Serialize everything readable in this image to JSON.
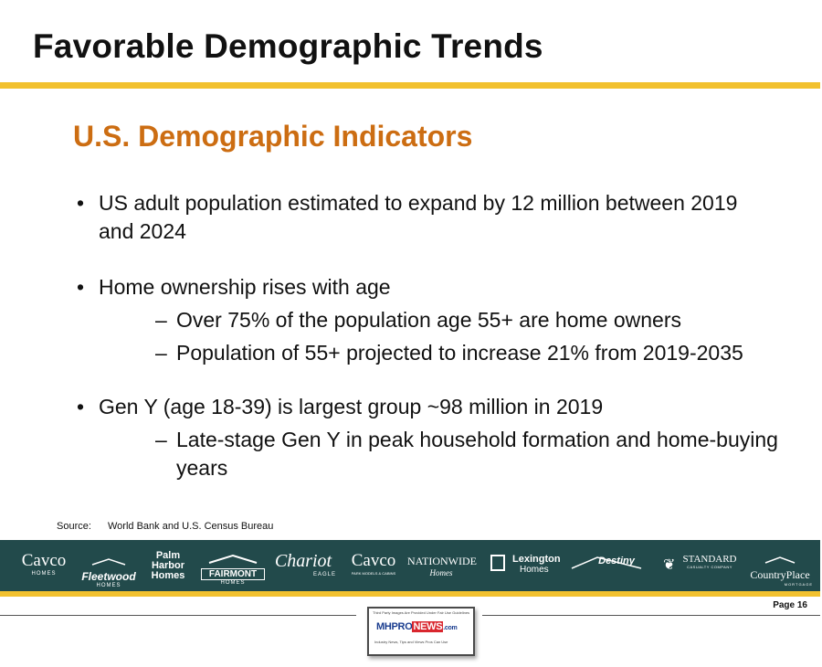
{
  "slide": {
    "title": "Favorable Demographic Trends",
    "subtitle": "U.S. Demographic Indicators",
    "bullets": [
      {
        "marker": "•",
        "text": "US adult population estimated to expand by 12 million between 2019 and 2024",
        "subs": []
      },
      {
        "marker": "•",
        "text": "Home ownership rises with age",
        "subs": [
          {
            "marker": "–",
            "text": "Over 75% of the population age 55+ are home owners"
          },
          {
            "marker": "–",
            "text": "Population of 55+ projected to increase 21% from 2019-2035"
          }
        ]
      },
      {
        "marker": "•",
        "text": "Gen Y (age 18-39) is largest group ~98 million in 2019",
        "subs": [
          {
            "marker": "–",
            "text": "Late-stage Gen Y in peak household formation and home-buying years"
          }
        ]
      }
    ],
    "source_label": "Source:",
    "source_text": "World Bank and U.S. Census Bureau",
    "page_label": "Page 16"
  },
  "brands": [
    {
      "main": "Cavco",
      "small": "HOMES"
    },
    {
      "main": "Fleetwood",
      "small": "HOMES"
    },
    {
      "main": "Palm Harbor Homes",
      "small": ""
    },
    {
      "main": "FAIRMONT",
      "small": "HOMES"
    },
    {
      "main": "Chariot",
      "small": "EAGLE"
    },
    {
      "main": "Cavco",
      "small": "PARK MODELS & CABINS"
    },
    {
      "main": "NATIONWIDE",
      "small": "Homes"
    },
    {
      "main": "Lexington",
      "small": "Homes"
    },
    {
      "main": "Destiny",
      "small": ""
    },
    {
      "main": "STANDARD",
      "small": "CASUALTY COMPANY"
    },
    {
      "main": "CountryPlace",
      "small": "MORTGAGE"
    }
  ],
  "watermark": {
    "top_text": "Third Party Images Are Provided Under Fair Use Guidelines",
    "name_left": "MHPRO",
    "name_mid": "NEWS",
    "name_right": ".com",
    "tagline": "Industry News, Tips and Views Pros Can Use"
  },
  "colors": {
    "accent_gold": "#f2c12e",
    "subtitle_orange": "#cc6d12",
    "brand_bar_teal": "#224a4b"
  }
}
